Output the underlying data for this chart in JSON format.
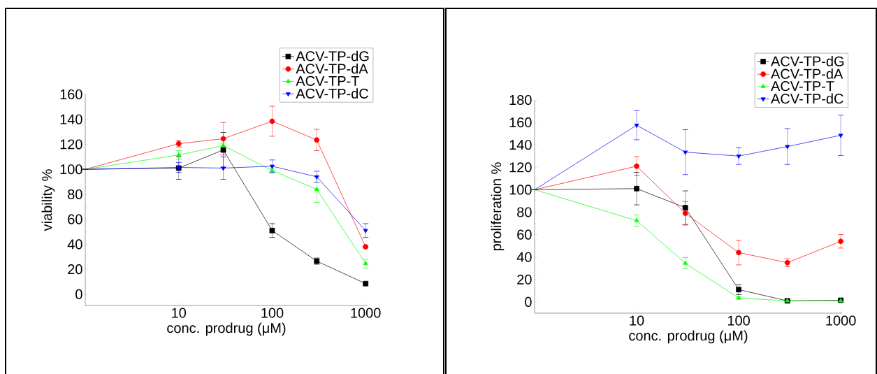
{
  "chart_data": [
    {
      "type": "line",
      "xlabel": "conc. prodrug (μM)",
      "ylabel": "viability %",
      "log": "x",
      "legend": "top right",
      "line_style": "solid",
      "x": [
        1,
        10,
        30,
        100,
        300,
        1000
      ],
      "xlim": [
        1,
        1050
      ],
      "xticks": [
        10,
        100,
        1000
      ],
      "ylim": [
        -9,
        160
      ],
      "yticks": [
        0,
        20,
        40,
        60,
        80,
        100,
        120,
        140,
        160
      ],
      "series": [
        {
          "name": "ACV-TP-dG",
          "color": "#000000",
          "marker": "square",
          "values": [
            100,
            101,
            115.5,
            51,
            26.5,
            8.5
          ],
          "errors": [
            null,
            9,
            14,
            5.5,
            2.5,
            1
          ]
        },
        {
          "name": "ACV-TP-dA",
          "color": "#ff0000",
          "marker": "circle",
          "values": [
            100,
            120.5,
            124.5,
            138.5,
            123.5,
            38
          ],
          "errors": [
            null,
            2.5,
            13,
            12,
            8.5,
            1
          ]
        },
        {
          "name": "ACV-TP-T",
          "color": "#00ff00",
          "marker": "triangle",
          "values": [
            100,
            111.5,
            119,
            99,
            84,
            24.5
          ],
          "errors": [
            null,
            3.5,
            2,
            2,
            10.5,
            3.5
          ]
        },
        {
          "name": "ACV-TP-dC",
          "color": "#0000ff",
          "marker": "triangle-down",
          "values": [
            100,
            101.5,
            101,
            102.5,
            94,
            51
          ],
          "errors": [
            null,
            4,
            9,
            5,
            4.5,
            5.5
          ]
        }
      ]
    },
    {
      "type": "line",
      "xlabel": "conc. prodrug (μM)",
      "ylabel": "proliferation %",
      "log": "x",
      "legend": "top right",
      "line_style": "solid",
      "x": [
        1,
        10,
        30,
        100,
        300,
        1000
      ],
      "xlim": [
        1,
        1030
      ],
      "xticks": [
        10,
        100,
        1000
      ],
      "ylim": [
        -10,
        180
      ],
      "yticks": [
        0,
        20,
        40,
        60,
        80,
        100,
        120,
        140,
        160,
        180
      ],
      "series": [
        {
          "name": "ACV-TP-dG",
          "color": "#000000",
          "marker": "square",
          "values": [
            100,
            101,
            84,
            11,
            1,
            1.5
          ],
          "errors": [
            null,
            14.5,
            15,
            4.5,
            1,
            1
          ]
        },
        {
          "name": "ACV-TP-dA",
          "color": "#ff0000",
          "marker": "circle",
          "values": [
            100,
            121,
            79,
            44,
            35,
            54
          ],
          "errors": [
            null,
            8.5,
            10.5,
            11,
            3.5,
            6
          ]
        },
        {
          "name": "ACV-TP-T",
          "color": "#00ff00",
          "marker": "triangle",
          "values": [
            100,
            72.5,
            34.5,
            3.5,
            1,
            1
          ],
          "errors": [
            null,
            5,
            5,
            1,
            1,
            1
          ]
        },
        {
          "name": "ACV-TP-dC",
          "color": "#0000ff",
          "marker": "triangle-down",
          "values": [
            100,
            157.5,
            133.5,
            130,
            138.5,
            148.5
          ],
          "errors": [
            null,
            13,
            20,
            7.5,
            16,
            18
          ]
        }
      ]
    }
  ]
}
